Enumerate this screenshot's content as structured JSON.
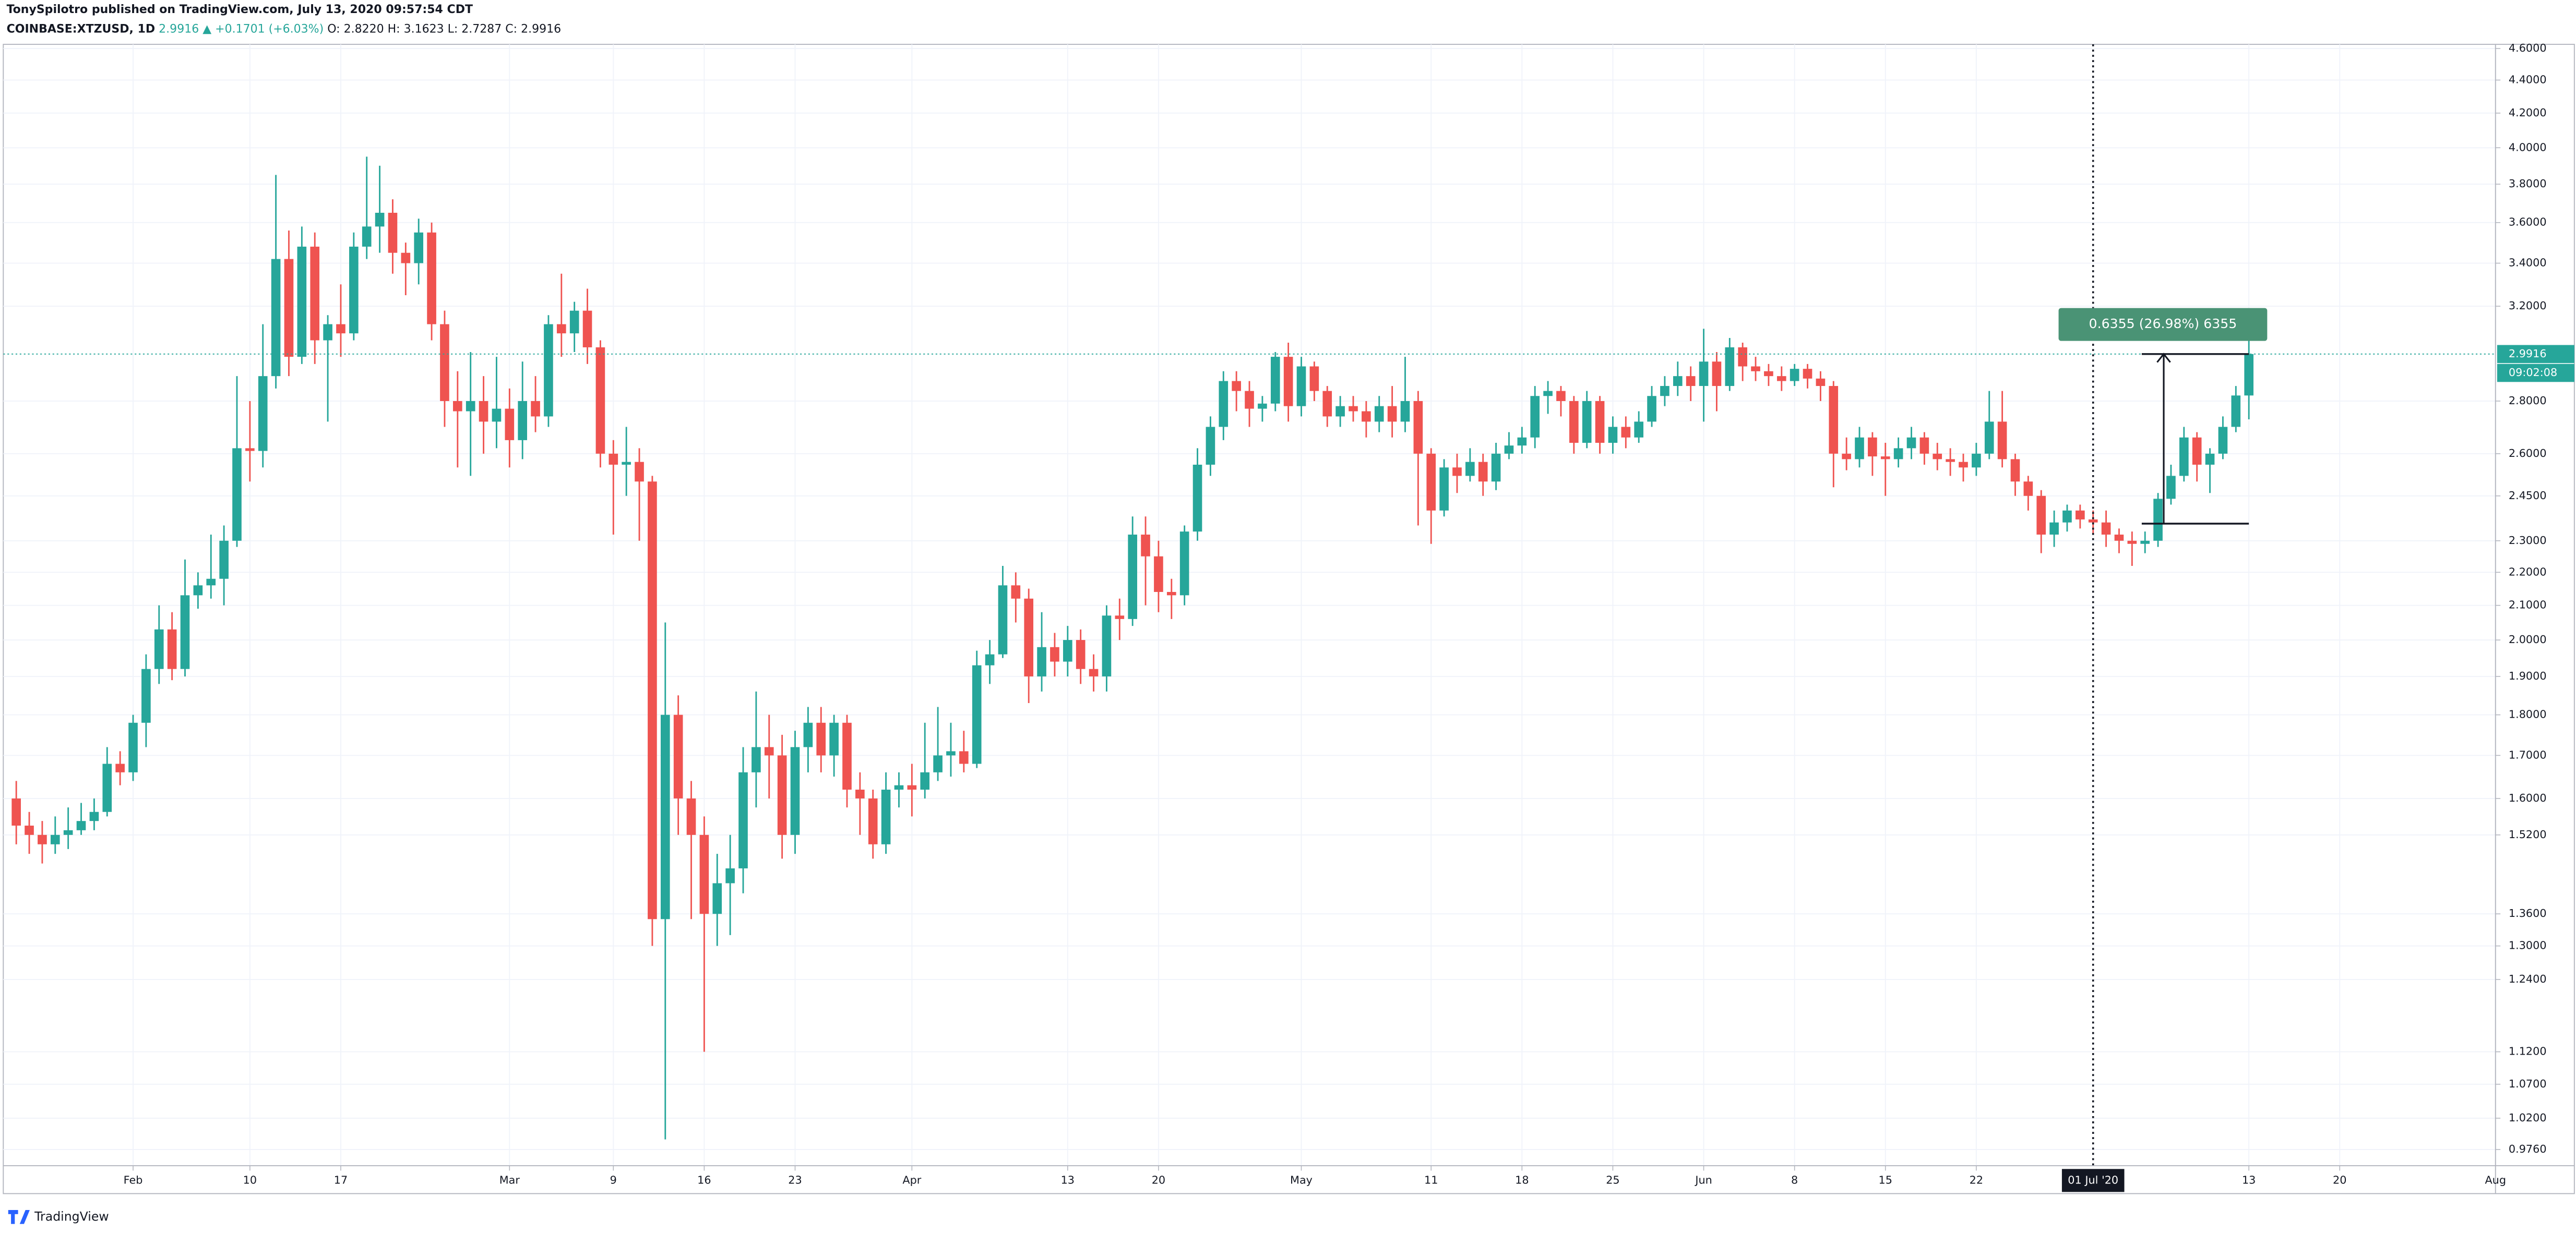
{
  "header": {
    "author_line": "TonySpilotro published on TradingView.com, July 13, 2020 09:57:54 CDT",
    "symbol": "COINBASE:XTZUSD, 1D",
    "price": "2.9916",
    "change": "▲ +0.1701 (+6.03%)",
    "ohlc": "O: 2.8220 H: 3.1623 L: 2.7287 C: 2.9916"
  },
  "footer": {
    "brand": "TradingView"
  },
  "chart_data": {
    "type": "candlestick",
    "log_scale": true,
    "grid": true,
    "up_color": "#26a69a",
    "down_color": "#ef5350",
    "xlim": [
      "2020-01-22",
      "2020-08-01"
    ],
    "ylim": [
      0.954,
      4.627
    ],
    "yticks": [
      {
        "value": 0.976,
        "label": "0.9760"
      },
      {
        "value": 1.02,
        "label": "1.0200"
      },
      {
        "value": 1.07,
        "label": "1.0700"
      },
      {
        "value": 1.12,
        "label": "1.1200"
      },
      {
        "value": 1.24,
        "label": "1.2400"
      },
      {
        "value": 1.3,
        "label": "1.3000"
      },
      {
        "value": 1.36,
        "label": "1.3600"
      },
      {
        "value": 1.52,
        "label": "1.5200"
      },
      {
        "value": 1.6,
        "label": "1.6000"
      },
      {
        "value": 1.7,
        "label": "1.7000"
      },
      {
        "value": 1.8,
        "label": "1.8000"
      },
      {
        "value": 1.9,
        "label": "1.9000"
      },
      {
        "value": 2,
        "label": "2.0000"
      },
      {
        "value": 2.1,
        "label": "2.1000"
      },
      {
        "value": 2.2,
        "label": "2.2000"
      },
      {
        "value": 2.3,
        "label": "2.3000"
      },
      {
        "value": 2.45,
        "label": "2.4500"
      },
      {
        "value": 2.6,
        "label": "2.6000"
      },
      {
        "value": 2.8,
        "label": "2.8000"
      },
      {
        "value": 3.2,
        "label": "3.2000"
      },
      {
        "value": 3.4,
        "label": "3.4000"
      },
      {
        "value": 3.6,
        "label": "3.6000"
      },
      {
        "value": 3.8,
        "label": "3.8000"
      },
      {
        "value": 4,
        "label": "4.0000"
      },
      {
        "value": 4.2,
        "label": "4.2000"
      },
      {
        "value": 4.4,
        "label": "4.4000"
      },
      {
        "value": 4.6,
        "label": "4.6000"
      }
    ],
    "xticks": [
      {
        "value": "2020-02-01",
        "label": "Feb"
      },
      {
        "value": "2020-02-10",
        "label": "10"
      },
      {
        "value": "2020-02-17",
        "label": "17"
      },
      {
        "value": "2020-03-01",
        "label": "Mar"
      },
      {
        "value": "2020-03-09",
        "label": "9"
      },
      {
        "value": "2020-03-16",
        "label": "16"
      },
      {
        "value": "2020-03-23",
        "label": "23"
      },
      {
        "value": "2020-04-01",
        "label": "Apr"
      },
      {
        "value": "2020-04-13",
        "label": "13"
      },
      {
        "value": "2020-04-20",
        "label": "20"
      },
      {
        "value": "2020-05-01",
        "label": "May"
      },
      {
        "value": "2020-05-11",
        "label": "11"
      },
      {
        "value": "2020-05-18",
        "label": "18"
      },
      {
        "value": "2020-05-25",
        "label": "25"
      },
      {
        "value": "2020-06-01",
        "label": "Jun"
      },
      {
        "value": "2020-06-08",
        "label": "8"
      },
      {
        "value": "2020-06-15",
        "label": "15"
      },
      {
        "value": "2020-06-22",
        "label": "22"
      },
      {
        "value": "2020-07-13",
        "label": "13"
      },
      {
        "value": "2020-07-20",
        "label": "20"
      },
      {
        "value": "2020-08-01",
        "label": "Aug"
      }
    ],
    "crosshair": {
      "x": "2020-07-01",
      "label": "01 Jul '20"
    },
    "last_price": 2.9916,
    "countdown": "09:02:08",
    "measure": {
      "label": "0.6355 (26.98%) 6355",
      "from_value": 2.3561,
      "to_value": 2.9916,
      "from_date": "2020-07-05",
      "to_date": "2020-07-13"
    },
    "x": [
      "2020-01-23",
      "2020-01-24",
      "2020-01-25",
      "2020-01-26",
      "2020-01-27",
      "2020-01-28",
      "2020-01-29",
      "2020-01-30",
      "2020-01-31",
      "2020-02-01",
      "2020-02-02",
      "2020-02-03",
      "2020-02-04",
      "2020-02-05",
      "2020-02-06",
      "2020-02-07",
      "2020-02-08",
      "2020-02-09",
      "2020-02-10",
      "2020-02-11",
      "2020-02-12",
      "2020-02-13",
      "2020-02-14",
      "2020-02-15",
      "2020-02-16",
      "2020-02-17",
      "2020-02-18",
      "2020-02-19",
      "2020-02-20",
      "2020-02-21",
      "2020-02-22",
      "2020-02-23",
      "2020-02-24",
      "2020-02-25",
      "2020-02-26",
      "2020-02-27",
      "2020-02-28",
      "2020-02-29",
      "2020-03-01",
      "2020-03-02",
      "2020-03-03",
      "2020-03-04",
      "2020-03-05",
      "2020-03-06",
      "2020-03-07",
      "2020-03-08",
      "2020-03-09",
      "2020-03-10",
      "2020-03-11",
      "2020-03-12",
      "2020-03-13",
      "2020-03-14",
      "2020-03-15",
      "2020-03-16",
      "2020-03-17",
      "2020-03-18",
      "2020-03-19",
      "2020-03-20",
      "2020-03-21",
      "2020-03-22",
      "2020-03-23",
      "2020-03-24",
      "2020-03-25",
      "2020-03-26",
      "2020-03-27",
      "2020-03-28",
      "2020-03-29",
      "2020-03-30",
      "2020-03-31",
      "2020-04-01",
      "2020-04-02",
      "2020-04-03",
      "2020-04-04",
      "2020-04-05",
      "2020-04-06",
      "2020-04-07",
      "2020-04-08",
      "2020-04-09",
      "2020-04-10",
      "2020-04-11",
      "2020-04-12",
      "2020-04-13",
      "2020-04-14",
      "2020-04-15",
      "2020-04-16",
      "2020-04-17",
      "2020-04-18",
      "2020-04-19",
      "2020-04-20",
      "2020-04-21",
      "2020-04-22",
      "2020-04-23",
      "2020-04-24",
      "2020-04-25",
      "2020-04-26",
      "2020-04-27",
      "2020-04-28",
      "2020-04-29",
      "2020-04-30",
      "2020-05-01",
      "2020-05-02",
      "2020-05-03",
      "2020-05-04",
      "2020-05-05",
      "2020-05-06",
      "2020-05-07",
      "2020-05-08",
      "2020-05-09",
      "2020-05-10",
      "2020-05-11",
      "2020-05-12",
      "2020-05-13",
      "2020-05-14",
      "2020-05-15",
      "2020-05-16",
      "2020-05-17",
      "2020-05-18",
      "2020-05-19",
      "2020-05-20",
      "2020-05-21",
      "2020-05-22",
      "2020-05-23",
      "2020-05-24",
      "2020-05-25",
      "2020-05-26",
      "2020-05-27",
      "2020-05-28",
      "2020-05-29",
      "2020-05-30",
      "2020-05-31",
      "2020-06-01",
      "2020-06-02",
      "2020-06-03",
      "2020-06-04",
      "2020-06-05",
      "2020-06-06",
      "2020-06-07",
      "2020-06-08",
      "2020-06-09",
      "2020-06-10",
      "2020-06-11",
      "2020-06-12",
      "2020-06-13",
      "2020-06-14",
      "2020-06-15",
      "2020-06-16",
      "2020-06-17",
      "2020-06-18",
      "2020-06-19",
      "2020-06-20",
      "2020-06-21",
      "2020-06-22",
      "2020-06-23",
      "2020-06-24",
      "2020-06-25",
      "2020-06-26",
      "2020-06-27",
      "2020-06-28",
      "2020-06-29",
      "2020-06-30",
      "2020-07-01",
      "2020-07-02",
      "2020-07-03",
      "2020-07-04",
      "2020-07-05",
      "2020-07-06",
      "2020-07-07",
      "2020-07-08",
      "2020-07-09",
      "2020-07-10",
      "2020-07-11",
      "2020-07-12",
      "2020-07-13"
    ],
    "open": [
      1.6,
      1.54,
      1.52,
      1.5,
      1.52,
      1.53,
      1.55,
      1.57,
      1.68,
      1.66,
      1.78,
      1.92,
      2.03,
      1.92,
      2.13,
      2.16,
      2.18,
      2.3,
      2.62,
      2.61,
      2.9,
      3.42,
      2.98,
      3.48,
      3.05,
      3.12,
      3.08,
      3.48,
      3.58,
      3.65,
      3.45,
      3.4,
      3.55,
      3.12,
      2.8,
      2.76,
      2.8,
      2.72,
      2.77,
      2.65,
      2.8,
      2.74,
      3.12,
      3.08,
      3.18,
      3.02,
      2.6,
      2.56,
      2.57,
      2.5,
      1.35,
      1.8,
      1.6,
      1.52,
      1.36,
      1.42,
      1.45,
      1.66,
      1.72,
      1.7,
      1.52,
      1.72,
      1.78,
      1.7,
      1.78,
      1.62,
      1.6,
      1.5,
      1.62,
      1.63,
      1.62,
      1.66,
      1.7,
      1.71,
      1.68,
      1.93,
      1.96,
      2.16,
      2.12,
      1.9,
      1.98,
      1.94,
      2.0,
      1.92,
      1.9,
      2.07,
      2.06,
      2.32,
      2.25,
      2.14,
      2.13,
      2.33,
      2.56,
      2.7,
      2.88,
      2.84,
      2.77,
      2.79,
      2.98,
      2.78,
      2.94,
      2.84,
      2.74,
      2.78,
      2.76,
      2.72,
      2.78,
      2.72,
      2.8,
      2.6,
      2.4,
      2.55,
      2.52,
      2.57,
      2.5,
      2.6,
      2.63,
      2.66,
      2.82,
      2.84,
      2.8,
      2.64,
      2.8,
      2.64,
      2.7,
      2.66,
      2.72,
      2.82,
      2.86,
      2.9,
      2.86,
      2.96,
      2.86,
      3.02,
      2.94,
      2.92,
      2.9,
      2.88,
      2.93,
      2.89,
      2.86,
      2.6,
      2.58,
      2.66,
      2.59,
      2.58,
      2.62,
      2.66,
      2.6,
      2.58,
      2.57,
      2.55,
      2.6,
      2.72,
      2.58,
      2.5,
      2.45,
      2.32,
      2.36,
      2.4,
      2.37,
      2.36,
      2.32,
      2.3,
      2.29,
      2.3,
      2.44,
      2.52,
      2.66,
      2.56,
      2.6,
      2.7,
      2.822
    ],
    "high": [
      1.64,
      1.57,
      1.55,
      1.56,
      1.58,
      1.59,
      1.6,
      1.72,
      1.71,
      1.8,
      1.96,
      2.1,
      2.08,
      2.24,
      2.2,
      2.32,
      2.35,
      2.9,
      2.8,
      3.12,
      3.85,
      3.56,
      3.58,
      3.55,
      3.16,
      3.3,
      3.55,
      3.95,
      3.9,
      3.72,
      3.5,
      3.62,
      3.6,
      3.18,
      2.92,
      3.0,
      2.9,
      2.98,
      2.85,
      2.96,
      2.9,
      3.16,
      3.35,
      3.22,
      3.28,
      3.05,
      2.65,
      2.7,
      2.62,
      2.52,
      2.05,
      1.85,
      1.64,
      1.56,
      1.48,
      1.52,
      1.72,
      1.86,
      1.8,
      1.75,
      1.76,
      1.82,
      1.82,
      1.8,
      1.8,
      1.66,
      1.62,
      1.66,
      1.66,
      1.68,
      1.78,
      1.82,
      1.78,
      1.76,
      1.97,
      2.0,
      2.22,
      2.2,
      2.15,
      2.08,
      2.02,
      2.04,
      2.03,
      1.96,
      2.1,
      2.12,
      2.38,
      2.38,
      2.3,
      2.18,
      2.35,
      2.62,
      2.74,
      2.92,
      2.92,
      2.88,
      2.82,
      3.0,
      3.04,
      2.98,
      2.96,
      2.86,
      2.82,
      2.82,
      2.8,
      2.82,
      2.86,
      2.98,
      2.84,
      2.62,
      2.58,
      2.6,
      2.62,
      2.6,
      2.64,
      2.68,
      2.7,
      2.86,
      2.88,
      2.86,
      2.82,
      2.84,
      2.82,
      2.74,
      2.74,
      2.76,
      2.86,
      2.9,
      2.96,
      2.94,
      3.1,
      3.0,
      3.06,
      3.04,
      2.98,
      2.95,
      2.94,
      2.95,
      2.95,
      2.92,
      2.88,
      2.66,
      2.7,
      2.68,
      2.64,
      2.66,
      2.7,
      2.68,
      2.64,
      2.62,
      2.6,
      2.64,
      2.84,
      2.84,
      2.6,
      2.52,
      2.47,
      2.4,
      2.42,
      2.42,
      2.4,
      2.4,
      2.34,
      2.33,
      2.33,
      2.46,
      2.56,
      2.7,
      2.68,
      2.62,
      2.74,
      2.86,
      3.1623
    ],
    "low": [
      1.5,
      1.48,
      1.46,
      1.48,
      1.49,
      1.52,
      1.53,
      1.56,
      1.63,
      1.64,
      1.72,
      1.88,
      1.89,
      1.9,
      2.09,
      2.12,
      2.1,
      2.28,
      2.5,
      2.55,
      2.85,
      2.9,
      2.95,
      2.95,
      2.72,
      2.98,
      3.05,
      3.42,
      3.45,
      3.35,
      3.25,
      3.3,
      3.05,
      2.7,
      2.55,
      2.52,
      2.6,
      2.62,
      2.55,
      2.58,
      2.68,
      2.7,
      2.98,
      3.0,
      2.95,
      2.55,
      2.32,
      2.45,
      2.3,
      1.3,
      0.99,
      1.52,
      1.35,
      1.12,
      1.3,
      1.32,
      1.4,
      1.58,
      1.6,
      1.47,
      1.48,
      1.66,
      1.66,
      1.65,
      1.58,
      1.52,
      1.47,
      1.48,
      1.58,
      1.56,
      1.6,
      1.64,
      1.65,
      1.66,
      1.67,
      1.88,
      1.95,
      2.05,
      1.83,
      1.86,
      1.9,
      1.9,
      1.88,
      1.86,
      1.86,
      2.0,
      2.04,
      2.1,
      2.08,
      2.06,
      2.1,
      2.3,
      2.52,
      2.65,
      2.76,
      2.7,
      2.72,
      2.76,
      2.72,
      2.74,
      2.8,
      2.7,
      2.7,
      2.72,
      2.66,
      2.68,
      2.66,
      2.68,
      2.35,
      2.29,
      2.38,
      2.46,
      2.5,
      2.45,
      2.47,
      2.58,
      2.6,
      2.62,
      2.75,
      2.74,
      2.6,
      2.62,
      2.6,
      2.6,
      2.62,
      2.64,
      2.7,
      2.78,
      2.82,
      2.8,
      2.72,
      2.76,
      2.84,
      2.88,
      2.88,
      2.86,
      2.84,
      2.86,
      2.85,
      2.8,
      2.48,
      2.54,
      2.55,
      2.52,
      2.45,
      2.55,
      2.58,
      2.56,
      2.54,
      2.52,
      2.5,
      2.52,
      2.58,
      2.55,
      2.45,
      2.4,
      2.26,
      2.28,
      2.33,
      2.34,
      2.32,
      2.28,
      2.26,
      2.22,
      2.26,
      2.28,
      2.42,
      2.5,
      2.5,
      2.46,
      2.58,
      2.68,
      2.7287
    ],
    "close": [
      1.54,
      1.52,
      1.5,
      1.52,
      1.53,
      1.55,
      1.57,
      1.68,
      1.66,
      1.78,
      1.92,
      2.03,
      1.92,
      2.13,
      2.16,
      2.18,
      2.3,
      2.62,
      2.61,
      2.9,
      3.42,
      2.98,
      3.48,
      3.05,
      3.12,
      3.08,
      3.48,
      3.58,
      3.65,
      3.45,
      3.4,
      3.55,
      3.12,
      2.8,
      2.76,
      2.8,
      2.72,
      2.77,
      2.65,
      2.8,
      2.74,
      3.12,
      3.08,
      3.18,
      3.02,
      2.6,
      2.56,
      2.57,
      2.5,
      1.35,
      1.8,
      1.6,
      1.52,
      1.36,
      1.42,
      1.45,
      1.66,
      1.72,
      1.7,
      1.52,
      1.72,
      1.78,
      1.7,
      1.78,
      1.62,
      1.6,
      1.5,
      1.62,
      1.63,
      1.62,
      1.66,
      1.7,
      1.71,
      1.68,
      1.93,
      1.96,
      2.16,
      2.12,
      1.9,
      1.98,
      1.94,
      2.0,
      1.92,
      1.9,
      2.07,
      2.06,
      2.32,
      2.25,
      2.14,
      2.13,
      2.33,
      2.56,
      2.7,
      2.88,
      2.84,
      2.77,
      2.79,
      2.98,
      2.78,
      2.94,
      2.84,
      2.74,
      2.78,
      2.76,
      2.72,
      2.78,
      2.72,
      2.8,
      2.6,
      2.4,
      2.55,
      2.52,
      2.57,
      2.5,
      2.6,
      2.63,
      2.66,
      2.82,
      2.84,
      2.8,
      2.64,
      2.8,
      2.64,
      2.7,
      2.66,
      2.72,
      2.82,
      2.86,
      2.9,
      2.86,
      2.96,
      2.86,
      3.02,
      2.94,
      2.92,
      2.9,
      2.88,
      2.93,
      2.89,
      2.86,
      2.6,
      2.58,
      2.66,
      2.59,
      2.58,
      2.62,
      2.66,
      2.6,
      2.58,
      2.57,
      2.55,
      2.6,
      2.72,
      2.58,
      2.5,
      2.45,
      2.32,
      2.36,
      2.4,
      2.37,
      2.36,
      2.32,
      2.3,
      2.29,
      2.3,
      2.44,
      2.52,
      2.66,
      2.56,
      2.6,
      2.7,
      2.822,
      2.9916
    ]
  }
}
